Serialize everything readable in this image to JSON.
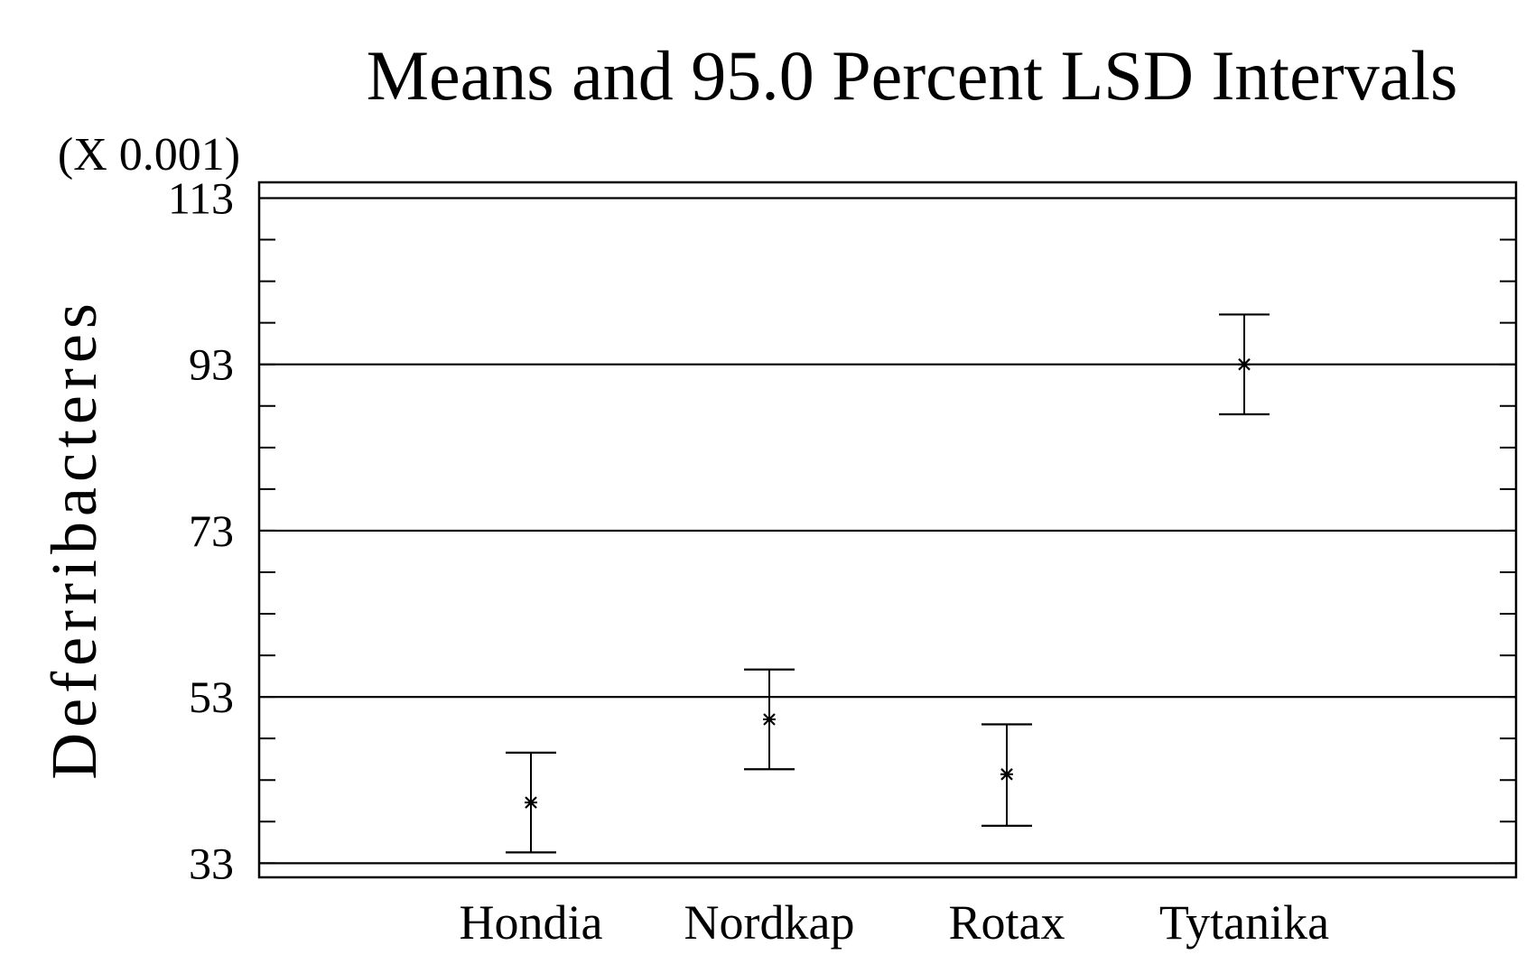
{
  "chart_data": {
    "type": "scatter",
    "title": "Means and 95.0 Percent LSD Intervals",
    "xlabel": "",
    "ylabel": "Deferribacteres",
    "y_multiplier_label": "(X 0.001)",
    "categories": [
      "Hondia",
      "Nordkap",
      "Rotax",
      "Tytanika"
    ],
    "means": [
      0.0403,
      0.0503,
      0.0437,
      0.093
    ],
    "lower": [
      0.0343,
      0.0443,
      0.0375,
      0.087
    ],
    "upper": [
      0.0463,
      0.0563,
      0.0497,
      0.099
    ],
    "ylim": [
      0.0313,
      0.1149
    ],
    "ytick_values": [
      33,
      53,
      73,
      93,
      113
    ],
    "ytick_labels": [
      "33",
      "53",
      "73",
      "93",
      "113"
    ],
    "grid": true,
    "legend": "none"
  }
}
